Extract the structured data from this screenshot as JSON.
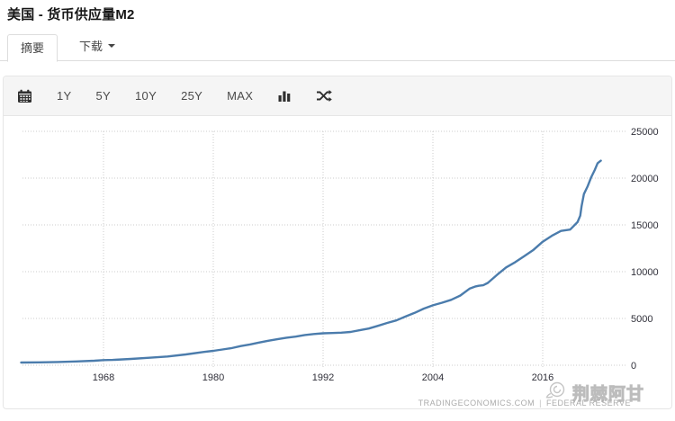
{
  "header": {
    "title": "美国 - 货币供应量M2"
  },
  "tabs": {
    "summary": {
      "label": "摘要",
      "active": true
    },
    "download": {
      "label": "下载"
    }
  },
  "toolbar": {
    "icons": [
      "calendar-icon",
      "bar-chart-icon",
      "shuffle-icon"
    ],
    "ranges": [
      "1Y",
      "5Y",
      "10Y",
      "25Y",
      "MAX"
    ]
  },
  "chart_data": {
    "type": "line",
    "title": "美国 - 货币供应量M2",
    "x_ticks": [
      1968,
      1980,
      1992,
      2004,
      2016
    ],
    "y_ticks": [
      0,
      5000,
      10000,
      15000,
      20000,
      25000
    ],
    "xlim": [
      1959,
      2022.6
    ],
    "ylim": [
      0,
      25000
    ],
    "grid": "dotted",
    "legend": "none",
    "line_color": "#4b7cac",
    "grid_color": "#cccccc",
    "tick_label_color": "#30303a",
    "series": [
      {
        "name": "M2",
        "points": [
          [
            1959,
            287
          ],
          [
            1961,
            312
          ],
          [
            1963,
            350
          ],
          [
            1965,
            400
          ],
          [
            1967,
            480
          ],
          [
            1968,
            545
          ],
          [
            1969,
            570
          ],
          [
            1971,
            675
          ],
          [
            1973,
            800
          ],
          [
            1975,
            930
          ],
          [
            1977,
            1150
          ],
          [
            1979,
            1425
          ],
          [
            1980,
            1540
          ],
          [
            1981,
            1680
          ],
          [
            1982,
            1830
          ],
          [
            1983,
            2050
          ],
          [
            1984,
            2220
          ],
          [
            1985,
            2420
          ],
          [
            1986,
            2620
          ],
          [
            1987,
            2780
          ],
          [
            1988,
            2940
          ],
          [
            1989,
            3060
          ],
          [
            1990,
            3230
          ],
          [
            1991,
            3340
          ],
          [
            1992,
            3410
          ],
          [
            1993,
            3440
          ],
          [
            1994,
            3480
          ],
          [
            1995,
            3560
          ],
          [
            1996,
            3740
          ],
          [
            1997,
            3920
          ],
          [
            1998,
            4210
          ],
          [
            1999,
            4520
          ],
          [
            2000,
            4790
          ],
          [
            2001,
            5200
          ],
          [
            2002,
            5600
          ],
          [
            2003,
            6050
          ],
          [
            2004,
            6400
          ],
          [
            2005,
            6680
          ],
          [
            2006,
            6990
          ],
          [
            2007,
            7450
          ],
          [
            2008,
            8180
          ],
          [
            2008.6,
            8400
          ],
          [
            2009,
            8490
          ],
          [
            2009.5,
            8550
          ],
          [
            2010,
            8800
          ],
          [
            2011,
            9650
          ],
          [
            2012,
            10450
          ],
          [
            2013,
            11020
          ],
          [
            2014,
            11670
          ],
          [
            2015,
            12340
          ],
          [
            2016,
            13200
          ],
          [
            2017,
            13840
          ],
          [
            2018,
            14360
          ],
          [
            2019,
            14500
          ],
          [
            2019.8,
            15300
          ],
          [
            2020.1,
            15980
          ],
          [
            2020.25,
            17000
          ],
          [
            2020.5,
            18300
          ],
          [
            2020.9,
            19100
          ],
          [
            2021.3,
            20100
          ],
          [
            2021.7,
            20900
          ],
          [
            2022.0,
            21600
          ],
          [
            2022.35,
            21870
          ]
        ]
      }
    ]
  },
  "footer": {
    "source_left": "TRADINGECONOMICS.COM",
    "separator": "|",
    "source_right": "FEDERAL RESERVE"
  },
  "watermark": {
    "text": "荆棘阿甘"
  }
}
